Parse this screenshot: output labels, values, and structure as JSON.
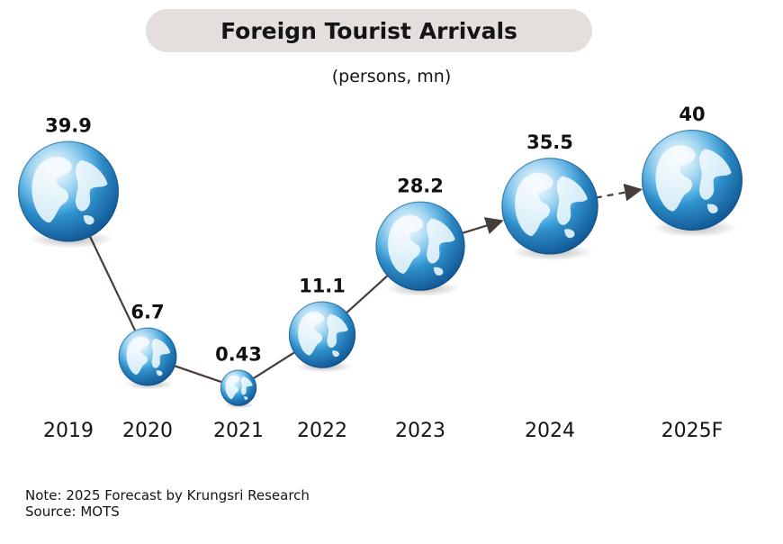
{
  "chart_data": {
    "type": "line",
    "title": "Foreign Tourist Arrivals",
    "subtitle": "(persons, mn)",
    "categories": [
      "2019",
      "2020",
      "2021",
      "2022",
      "2023",
      "2024",
      "2025F"
    ],
    "series": [
      {
        "values": [
          39.9,
          6.7,
          0.43,
          11.1,
          28.2,
          35.5,
          40
        ],
        "value_labels": [
          "39.9",
          "6.7",
          "0.43",
          "11.1",
          "28.2",
          "35.5",
          "40"
        ]
      }
    ],
    "forecast_categories": [
      "2025F"
    ],
    "marker": "globe-icon",
    "grid": false,
    "legend": "none"
  },
  "notes": {
    "line1": "Note: 2025 Forecast by Krungsri Research",
    "line2": "Source:  MOTS"
  },
  "colors": {
    "title_bg": "#e4dedc",
    "line": "#463c3a",
    "globe_ocean": "#2c8fd0",
    "globe_land": "#e6f4fb"
  }
}
